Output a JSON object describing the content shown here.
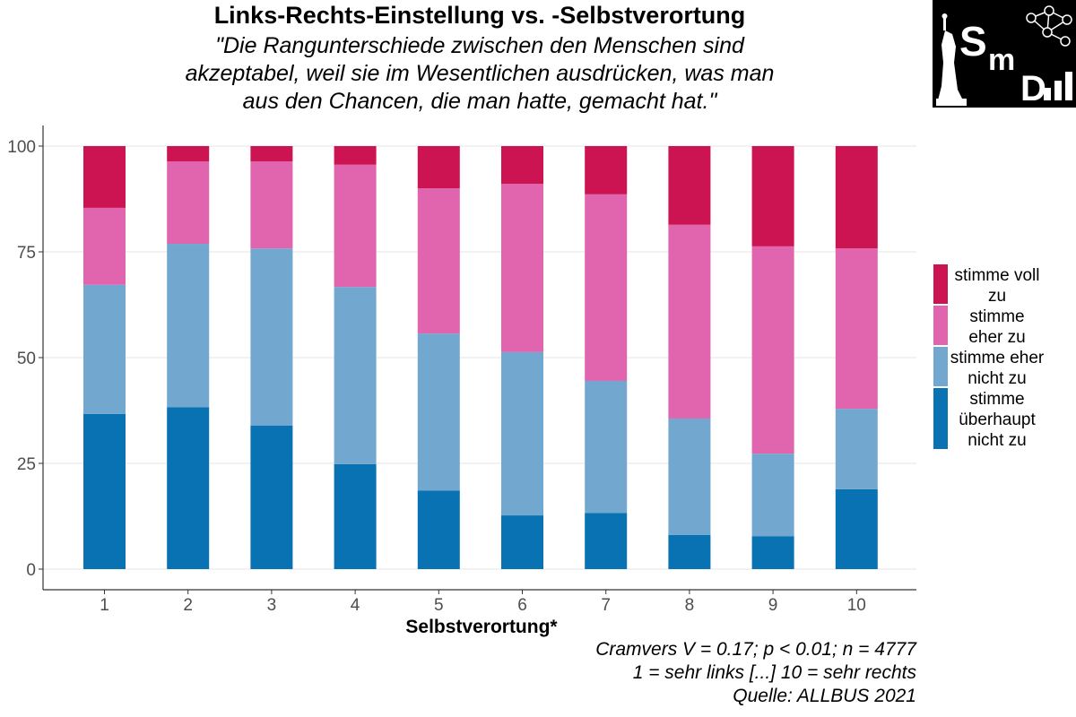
{
  "chart_data": {
    "type": "bar",
    "stacked": true,
    "title": "Links-Rechts-Einstellung vs. -Selbstverortung",
    "subtitle_lines": [
      "\"Die Rangunterschiede zwischen den Menschen sind",
      "akzeptabel, weil sie im Wesentlichen ausdrücken, was man",
      "aus den Chancen, die man hatte, gemacht hat.\""
    ],
    "xlabel": "Selbstverortung*",
    "ylabel": "",
    "categories": [
      "1",
      "2",
      "3",
      "4",
      "5",
      "6",
      "7",
      "8",
      "9",
      "10"
    ],
    "ylim": [
      0,
      100
    ],
    "yticks": [
      0,
      25,
      50,
      75,
      100
    ],
    "grid": true,
    "legend_position": "right",
    "series": [
      {
        "name": "stimme überhaupt nicht zu",
        "legend_lines": [
          "stimme",
          "überhaupt",
          "nicht zu"
        ],
        "color": "#0872B3",
        "values": [
          36.7,
          38.3,
          33.9,
          24.8,
          18.6,
          12.7,
          13.3,
          8.1,
          7.8,
          18.9
        ]
      },
      {
        "name": "stimme eher nicht zu",
        "legend_lines": [
          "stimme eher",
          "nicht zu"
        ],
        "color": "#72A8CF",
        "values": [
          30.5,
          38.6,
          41.9,
          41.9,
          37.1,
          38.6,
          31.2,
          27.5,
          19.5,
          19.0
        ]
      },
      {
        "name": "stimme eher zu",
        "legend_lines": [
          "stimme",
          "eher zu"
        ],
        "color": "#E064AE",
        "values": [
          18.2,
          19.5,
          20.6,
          28.9,
          34.3,
          39.8,
          44.1,
          45.8,
          49.0,
          37.9
        ]
      },
      {
        "name": "stimme voll zu",
        "legend_lines": [
          "stimme voll",
          "zu"
        ],
        "color": "#CC1452",
        "values": [
          14.6,
          3.6,
          3.6,
          4.4,
          10.0,
          8.9,
          11.4,
          18.6,
          23.7,
          24.2
        ]
      }
    ],
    "caption_lines": [
      "Cramvers V = 0.17; p < 0.01; n = 4777",
      "1 = sehr links [...] 10 = sehr rechts",
      "Quelle: ALLBUS 2021"
    ]
  },
  "logo": {
    "text": "SmD"
  }
}
